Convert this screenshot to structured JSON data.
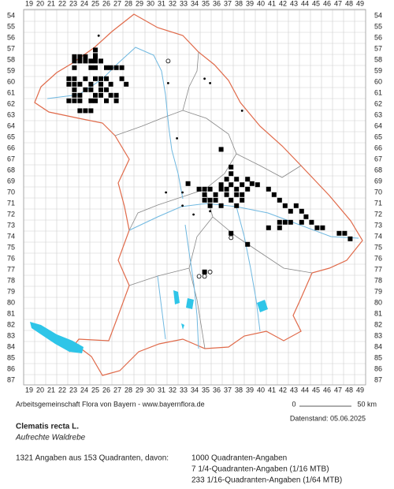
{
  "columns": [
    19,
    20,
    21,
    22,
    23,
    24,
    25,
    26,
    27,
    28,
    29,
    30,
    31,
    32,
    33,
    34,
    35,
    36,
    37,
    38,
    39,
    40,
    41,
    42,
    43,
    44,
    45,
    46,
    47,
    48,
    49
  ],
  "rows": [
    54,
    55,
    56,
    57,
    58,
    59,
    60,
    61,
    62,
    63,
    64,
    65,
    66,
    67,
    68,
    69,
    70,
    71,
    72,
    73,
    74,
    75,
    76,
    77,
    78,
    79,
    80,
    81,
    82,
    83,
    84,
    85,
    86,
    87
  ],
  "squares": [
    [
      25,
      57.1
    ],
    [
      25,
      57.6
    ],
    [
      23.1,
      57.7
    ],
    [
      23.6,
      57.7
    ],
    [
      24.1,
      57.7
    ],
    [
      25,
      57.7
    ],
    [
      23.1,
      58.1
    ],
    [
      23.6,
      58.1
    ],
    [
      24.1,
      58.1
    ],
    [
      24.6,
      58.1
    ],
    [
      25,
      58.1
    ],
    [
      25.5,
      58.1
    ],
    [
      26,
      58.7
    ],
    [
      26.4,
      58.7
    ],
    [
      26.9,
      58.7
    ],
    [
      27.4,
      58.7
    ],
    [
      25,
      58.7
    ],
    [
      24.6,
      58.7
    ],
    [
      23.1,
      58.7
    ],
    [
      22.6,
      59.7
    ],
    [
      23.1,
      59.7
    ],
    [
      24.1,
      59.7
    ],
    [
      25,
      59.7
    ],
    [
      25.5,
      59.7
    ],
    [
      26,
      59.7
    ],
    [
      27.4,
      59.7
    ],
    [
      22.6,
      60.2
    ],
    [
      23.1,
      60.2
    ],
    [
      23.6,
      60.2
    ],
    [
      24.6,
      60.2
    ],
    [
      25.5,
      60.2
    ],
    [
      26.4,
      60.2
    ],
    [
      27.8,
      60.2
    ],
    [
      23.1,
      60.7
    ],
    [
      24.1,
      60.7
    ],
    [
      24.6,
      60.7
    ],
    [
      25.5,
      60.7
    ],
    [
      26,
      60.7
    ],
    [
      23.1,
      61.2
    ],
    [
      23.6,
      61.2
    ],
    [
      25,
      61.2
    ],
    [
      25.5,
      61.2
    ],
    [
      26.4,
      61.2
    ],
    [
      26.9,
      61.2
    ],
    [
      22.6,
      61.7
    ],
    [
      23.1,
      61.7
    ],
    [
      23.6,
      61.7
    ],
    [
      24.6,
      61.7
    ],
    [
      25,
      61.7
    ],
    [
      26,
      61.7
    ],
    [
      26.9,
      61.7
    ],
    [
      23.6,
      62.6
    ],
    [
      24.1,
      62.6
    ],
    [
      24.6,
      62.6
    ],
    [
      36.4,
      66.1
    ],
    [
      37.3,
      67.7
    ],
    [
      37.3,
      68.3
    ],
    [
      36.9,
      68.8
    ],
    [
      37.8,
      68.8
    ],
    [
      38.8,
      68.8
    ],
    [
      39.2,
      69.2
    ],
    [
      36.4,
      69.3
    ],
    [
      37.3,
      69.3
    ],
    [
      38.3,
      69.3
    ],
    [
      39.7,
      69.3
    ],
    [
      33.4,
      69.2
    ],
    [
      34.4,
      69.7
    ],
    [
      34.9,
      69.7
    ],
    [
      35.4,
      69.7
    ],
    [
      36.4,
      69.7
    ],
    [
      36.9,
      69.7
    ],
    [
      37.8,
      69.7
    ],
    [
      38.8,
      69.7
    ],
    [
      40.7,
      69.7
    ],
    [
      41.2,
      70.2
    ],
    [
      34.9,
      70.2
    ],
    [
      35.9,
      70.2
    ],
    [
      36.9,
      70.2
    ],
    [
      37.8,
      70.2
    ],
    [
      38.3,
      70.2
    ],
    [
      41.7,
      70.7
    ],
    [
      34.9,
      70.7
    ],
    [
      35.4,
      70.7
    ],
    [
      35.9,
      70.7
    ],
    [
      37.3,
      70.7
    ],
    [
      38.3,
      70.7
    ],
    [
      42.2,
      71.2
    ],
    [
      43.2,
      71.2
    ],
    [
      35.4,
      71.2
    ],
    [
      36.4,
      71.2
    ],
    [
      37.8,
      71.2
    ],
    [
      42.7,
      71.7
    ],
    [
      43.7,
      71.7
    ],
    [
      44.1,
      72.2
    ],
    [
      41.7,
      72.7
    ],
    [
      42.2,
      72.7
    ],
    [
      42.7,
      72.7
    ],
    [
      43.7,
      72.7
    ],
    [
      44.6,
      72.7
    ],
    [
      45.1,
      73.2
    ],
    [
      45.6,
      73.2
    ],
    [
      41.7,
      73.2
    ],
    [
      40.7,
      73.2
    ],
    [
      47.1,
      73.7
    ],
    [
      47.6,
      73.7
    ],
    [
      48.1,
      74.2
    ],
    [
      38.8,
      74.7
    ],
    [
      37.3,
      73.7
    ],
    [
      34.9,
      77.2
    ]
  ],
  "dots": [
    [
      25.3,
      55.8
    ],
    [
      31.6,
      60.1
    ],
    [
      34.9,
      59.7
    ],
    [
      35.4,
      60.1
    ],
    [
      38.3,
      62.6
    ],
    [
      32.4,
      65.1
    ],
    [
      31.4,
      70
    ],
    [
      32.9,
      70
    ],
    [
      33.9,
      72
    ],
    [
      32.9,
      71.2
    ],
    [
      35.4,
      71.7
    ],
    [
      45.2,
      73.2
    ],
    [
      47.6,
      73.7
    ]
  ],
  "circles": [
    [
      31.6,
      58.1
    ],
    [
      37.3,
      74.1
    ],
    [
      34.4,
      77.6
    ],
    [
      34.9,
      77.6
    ],
    [
      35.4,
      77.2
    ]
  ],
  "footer": "Arbeitsgemeinschaft Flora von Bayern - www.bayernflora.de",
  "scale": {
    "start": "0",
    "end": "50 km"
  },
  "date": "Datenstand: 05.06.2025",
  "species": {
    "name": "Clematis recta L.",
    "common": "Aufrechte Waldrebe"
  },
  "summary": "1321 Angaben aus 153 Quadranten, davon:",
  "breakdown": [
    "1000 Quadranten-Angaben",
    "7 1/4-Quadranten-Angaben (1/16 MTB)",
    "233 1/16-Quadranten-Angaben (1/64 MTB)"
  ]
}
